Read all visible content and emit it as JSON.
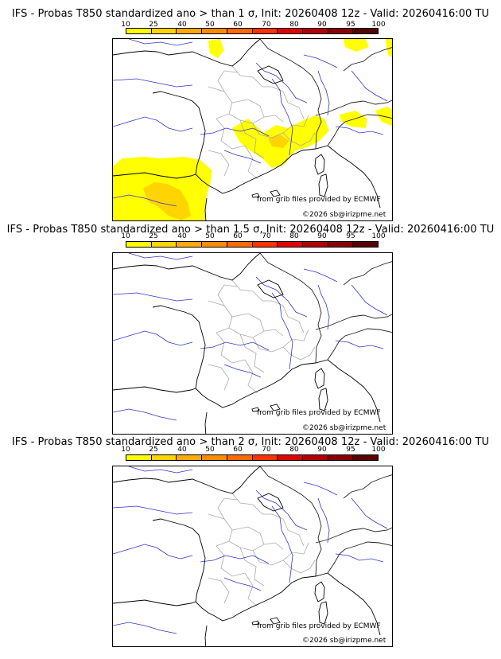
{
  "colorbar": {
    "ticks": [
      "10",
      "25",
      "40",
      "50",
      "60",
      "70",
      "80",
      "90",
      "95",
      "100"
    ],
    "colors": [
      "#ffff00",
      "#ffd400",
      "#ffaa00",
      "#ff8c00",
      "#ff6a00",
      "#ff3300",
      "#e00000",
      "#b40000",
      "#8a0000",
      "#5a0000"
    ]
  },
  "panels": [
    {
      "title": "IFS - Probas T850  standardized ano > than 1 σ, Init: 20260408 12z - Valid: 20260416:00 TU",
      "source": "from grib files provided by ECMWF",
      "copyright": "©2026 sb@irizpme.net"
    },
    {
      "title": "IFS - Probas T850  standardized ano > than 1.5 σ, Init: 20260408 12z - Valid: 20260416:00 TU",
      "source": "from grib files provided by ECMWF",
      "copyright": "©2026 sb@irizpme.net"
    },
    {
      "title": "IFS - Probas T850  standardized ano > than 2 σ, Init: 20260408 12z - Valid: 20260416:00 TU",
      "source": "from grib files provided by ECMWF",
      "copyright": "©2026 sb@irizpme.net"
    }
  ]
}
